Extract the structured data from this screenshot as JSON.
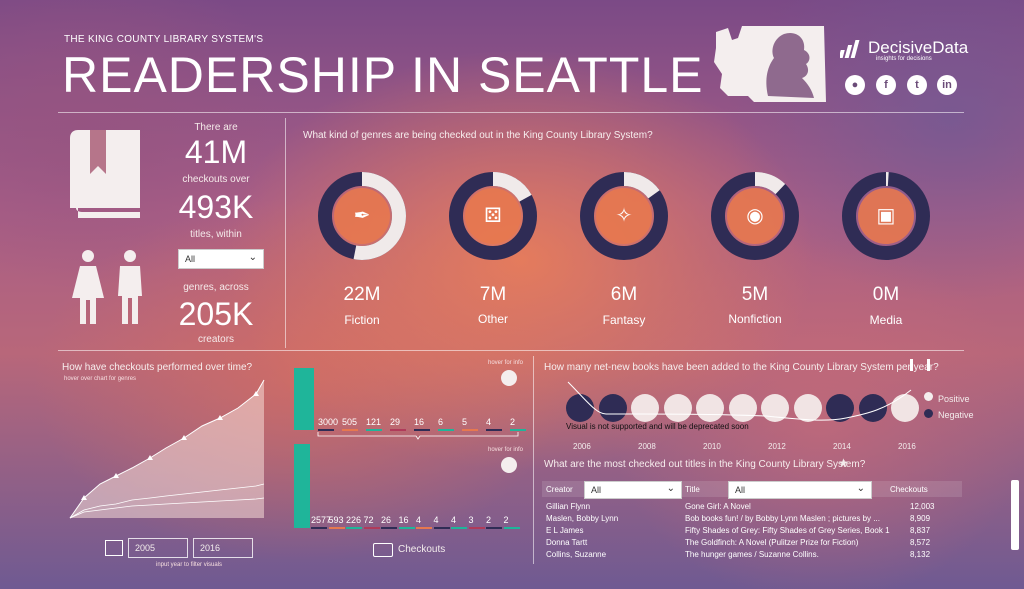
{
  "header": {
    "subtitle": "THE KING COUNTY LIBRARY SYSTEM'S",
    "title": "READERSHIP IN SEATTLE",
    "brand_name": "DecisiveData",
    "brand_tagline": "insights for decisions",
    "social": [
      "globe-icon",
      "facebook-icon",
      "twitter-icon",
      "linkedin-icon"
    ]
  },
  "stats": {
    "there_are": "There are",
    "checkouts": "41M",
    "checkouts_over": "checkouts over",
    "titles": "493K",
    "titles_within": "titles, within",
    "genre_select": "All",
    "genres_across": "genres, across",
    "creators": "205K",
    "creators_label": "creators"
  },
  "genres": {
    "question": "What kind of genres are being checked out in the King County Library System?",
    "items": [
      {
        "value": "22M",
        "label": "Fiction",
        "share": 0.53,
        "icon": "feather-icon"
      },
      {
        "value": "7M",
        "label": "Other",
        "share": 0.17,
        "icon": "dice-icon"
      },
      {
        "value": "6M",
        "label": "Fantasy",
        "share": 0.15,
        "icon": "magic-wand-icon"
      },
      {
        "value": "5M",
        "label": "Nonfiction",
        "share": 0.12,
        "icon": "eye-icon"
      },
      {
        "value": "0M",
        "label": "Media",
        "share": 0.01,
        "icon": "media-icon"
      }
    ],
    "colors": {
      "dark": "#2f2c55",
      "light": "#f0eaea",
      "accent": "#e7784f"
    }
  },
  "checkouts_over_time": {
    "question": "How have checkouts performed over time?",
    "hint": "hover over chart for genres",
    "year_from": "2005",
    "year_to": "2016",
    "input_hint": "input year to filter visuals"
  },
  "bars": {
    "hover_hint_1": "hover for info",
    "hover_hint_2": "hover for info",
    "top_values": [
      "3000",
      "505",
      "121",
      "29",
      "16",
      "6",
      "5",
      "4",
      "2"
    ],
    "bottom_values": [
      "2577",
      "593",
      "226",
      "72",
      "26",
      "16",
      "4",
      "4",
      "4",
      "3",
      "2",
      "2"
    ],
    "checkouts_label": "Checkouts",
    "teal": "#1fb59a"
  },
  "new_books": {
    "question": "How many net-new books have been added to the King County Library System per year?",
    "legend_positive": "Positive",
    "legend_negative": "Negative",
    "warning": "Visual is not supported and will be deprecated soon",
    "years": [
      "2006",
      "2008",
      "2010",
      "2012",
      "2014",
      "2016"
    ],
    "circles": [
      "negative",
      "negative",
      "positive",
      "positive",
      "positive",
      "positive",
      "positive",
      "positive",
      "negative",
      "negative",
      "positive"
    ]
  },
  "titles_table": {
    "question": "What are the most checked out titles in the King County Library System?",
    "creator_label": "Creator",
    "creator_select": "All",
    "title_label": "Title",
    "title_select": "All",
    "checkouts_header": "Checkouts",
    "rows": [
      {
        "creator": "Gillian Flynn",
        "title": "Gone Girl: A Novel",
        "checkouts": "12,003"
      },
      {
        "creator": "Maslen, Bobby Lynn",
        "title": "Bob books fun! / by Bobby Lynn Maslen ; pictures by ...",
        "checkouts": "8,909"
      },
      {
        "creator": "E L James",
        "title": "Fifty Shades of Grey: Fifty Shades of Grey Series, Book 1",
        "checkouts": "8,837"
      },
      {
        "creator": "Donna Tartt",
        "title": "The Goldfinch: A Novel (Pulitzer Prize for Fiction)",
        "checkouts": "8,572"
      },
      {
        "creator": "Collins, Suzanne",
        "title": "The hunger games / Suzanne Collins.",
        "checkouts": "8,132"
      }
    ]
  }
}
